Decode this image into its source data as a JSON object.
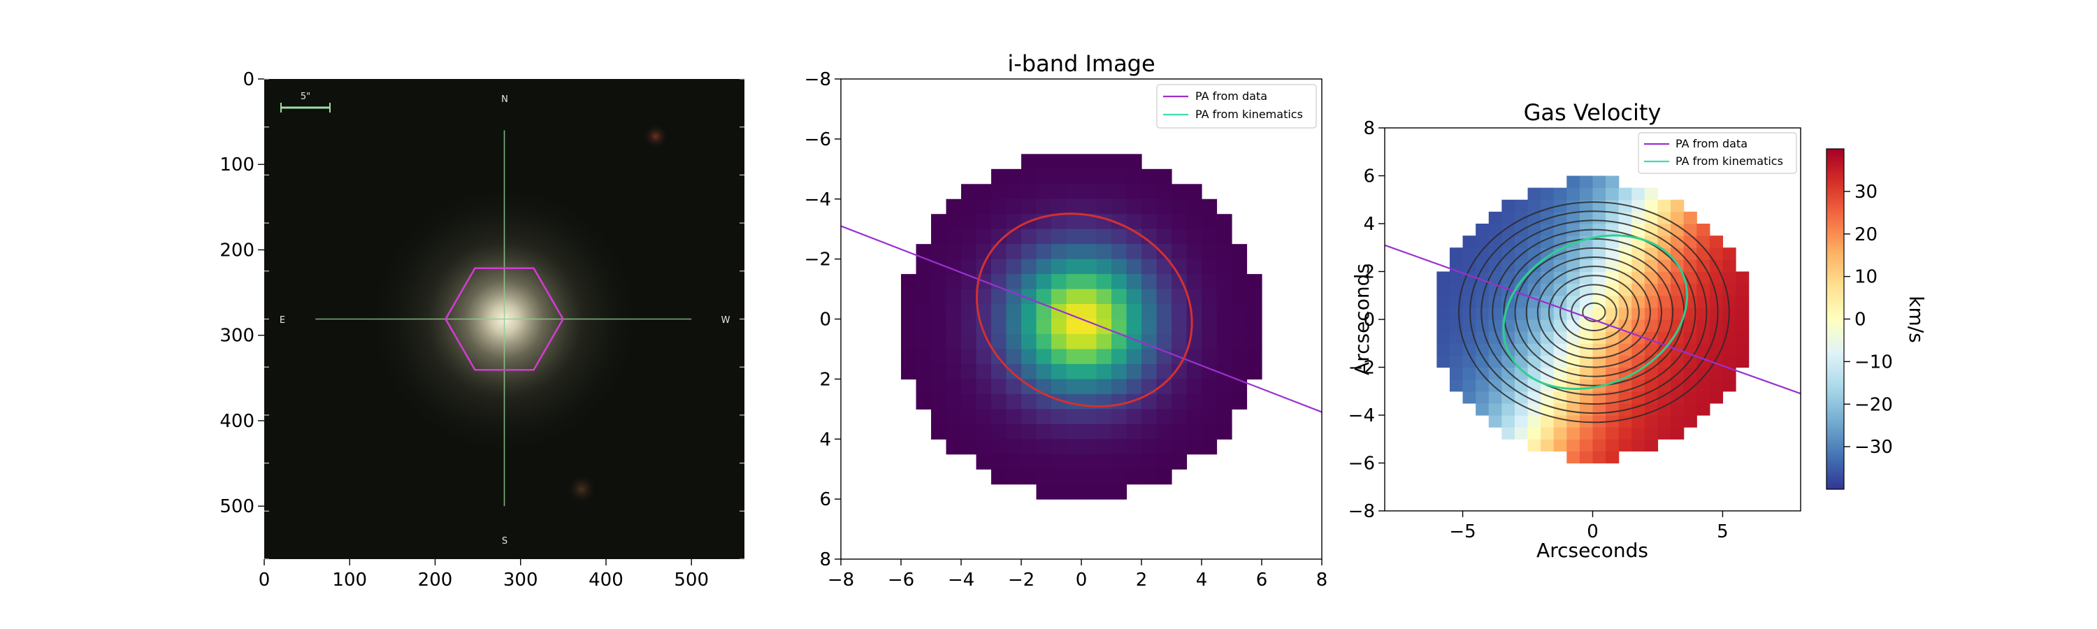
{
  "chart_data": [
    {
      "type": "image",
      "panel": "optical-image",
      "title": "",
      "x_ticks": [
        0,
        100,
        200,
        300,
        400,
        500
      ],
      "y_ticks": [
        0,
        100,
        200,
        300,
        400,
        500
      ],
      "xlim": [
        0,
        562
      ],
      "ylim": [
        562,
        0
      ],
      "scale_bar_label": "5\"",
      "compass": {
        "north": "N",
        "south": "S",
        "east": "E",
        "west": "W"
      },
      "galaxy_center": [
        281,
        281
      ],
      "colors": {
        "background": "#0e100c",
        "crosshair": "#8fcf8f",
        "ifu_hexagon": "#d23cd2",
        "scale_bar": "#9de0a4"
      }
    },
    {
      "type": "heatmap",
      "panel": "i-band",
      "title": "i-band Image",
      "xlim": [
        -8,
        8
      ],
      "ylim": [
        8,
        -8
      ],
      "x_ticks": [
        -8,
        -6,
        -4,
        -2,
        0,
        2,
        4,
        6,
        8
      ],
      "y_ticks": [
        -8,
        -6,
        -4,
        -2,
        0,
        2,
        4,
        6,
        8
      ],
      "x_tick_labels": [
        "−8",
        "−6",
        "−4",
        "−2",
        "0",
        "2",
        "4",
        "6",
        "8"
      ],
      "y_tick_labels": [
        "−8",
        "−6",
        "−4",
        "−2",
        "0",
        "2",
        "4",
        "6",
        "8"
      ],
      "colormap": "viridis",
      "lines": [
        {
          "name": "PA from data",
          "color": "#9b30d0",
          "x": [
            -8,
            8
          ],
          "y": [
            -3.1,
            3.1
          ]
        },
        {
          "name": "PA from kinematics",
          "color": "#3fd9b4",
          "x": [],
          "y": []
        }
      ],
      "ellipse": {
        "color": "#d43030",
        "center": [
          0.1,
          -0.3
        ],
        "a": 3.5,
        "b": 3.1,
        "angle_deg": 25
      },
      "legend": "upper right"
    },
    {
      "type": "heatmap",
      "panel": "gas-velocity",
      "title": "Gas Velocity",
      "xlabel": "Arcseconds",
      "ylabel": "Arcseconds",
      "xlim": [
        -8,
        8
      ],
      "ylim": [
        -8,
        8
      ],
      "x_ticks": [
        -5,
        0,
        5
      ],
      "x_tick_labels": [
        "−5",
        "0",
        "5"
      ],
      "y_ticks": [
        8,
        6,
        4,
        2,
        0,
        -2,
        -4,
        -6,
        -8
      ],
      "y_tick_labels": [
        "8",
        "6",
        "4",
        "2",
        "0",
        "−2",
        "−4",
        "−6",
        "−8"
      ],
      "colormap": "RdYlBu_r",
      "colorbar": {
        "label": "km/s",
        "range": [
          -40,
          40
        ],
        "ticks": [
          30,
          20,
          10,
          0,
          -10,
          -20,
          -30
        ],
        "tick_labels": [
          "30",
          "20",
          "10",
          "0",
          "−10",
          "−20",
          "−30"
        ]
      },
      "lines": [
        {
          "name": "PA from data",
          "color": "#9b30d0",
          "x": [
            -8,
            8
          ],
          "y": [
            3.1,
            -3.1
          ]
        },
        {
          "name": "PA from kinematics",
          "color": "#3fd9b4",
          "x": [],
          "y": []
        }
      ],
      "ellipse": {
        "color": "#2fcf8f",
        "center": [
          0.1,
          0.3
        ],
        "a": 3.5,
        "b": 3.1,
        "angle_deg": 25
      },
      "contour_levels": 12,
      "legend": "upper right"
    }
  ]
}
